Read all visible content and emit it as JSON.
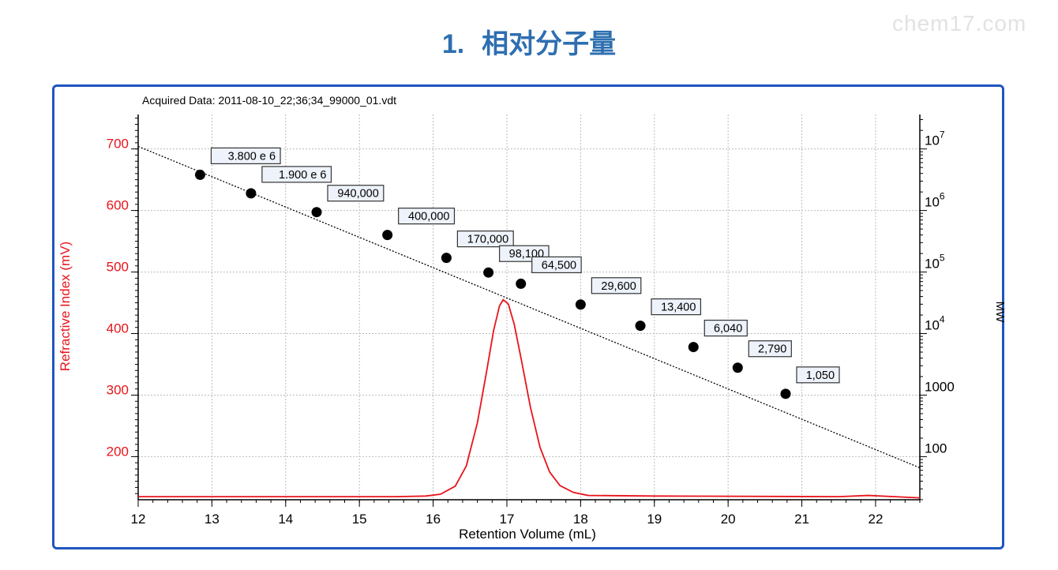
{
  "header": {
    "number": "1.",
    "title": "相对分子量",
    "watermark": "chem17.com"
  },
  "chart_data": {
    "type": "line",
    "title": "Acquired Data: 2011-08-10_22;36;34_99000_01.vdt",
    "xlabel": "Retention Volume (mL)",
    "ylabel": "Refractive Index (mV)",
    "y2label": "MW",
    "xlim": [
      12,
      22.6
    ],
    "ylim": [
      130,
      756
    ],
    "y2_scale": "log",
    "y2lim": [
      13,
      56000000.0
    ],
    "x_ticks": [
      "12",
      "13",
      "14",
      "15",
      "16",
      "17",
      "18",
      "19",
      "20",
      "21",
      "22"
    ],
    "y_ticks": [
      "200",
      "300",
      "400",
      "500",
      "600",
      "700"
    ],
    "y2_ticks": [
      {
        "label": "10",
        "exp": "7",
        "value": 10000000
      },
      {
        "label": "10",
        "exp": "6",
        "value": 1000000
      },
      {
        "label": "10",
        "exp": "5",
        "value": 100000
      },
      {
        "label": "10",
        "exp": "4",
        "value": 10000
      },
      {
        "label": "1000",
        "exp": "",
        "value": 1000
      },
      {
        "label": "100",
        "exp": "",
        "value": 100
      }
    ],
    "grid": true,
    "colors": {
      "ri": "#e8141b",
      "calibration": "#000000",
      "axis_left": "#e8141b",
      "frame": "#1f55c0"
    },
    "calibration_standards": [
      {
        "x": 12.84,
        "mw": 3800000,
        "label": "3.800 e 6"
      },
      {
        "x": 13.53,
        "mw": 1900000,
        "label": "1.900 e 6"
      },
      {
        "x": 14.42,
        "mw": 940000,
        "label": "940,000"
      },
      {
        "x": 15.38,
        "mw": 400000,
        "label": "400,000"
      },
      {
        "x": 16.18,
        "mw": 170000,
        "label": "170,000"
      },
      {
        "x": 16.75,
        "mw": 98100,
        "label": "98,100"
      },
      {
        "x": 17.19,
        "mw": 64500,
        "label": "64,500"
      },
      {
        "x": 18.0,
        "mw": 29600,
        "label": "29,600"
      },
      {
        "x": 18.81,
        "mw": 13400,
        "label": "13,400"
      },
      {
        "x": 19.53,
        "mw": 6040,
        "label": "6,040"
      },
      {
        "x": 20.13,
        "mw": 2790,
        "label": "2,790"
      },
      {
        "x": 20.78,
        "mw": 1050,
        "label": "1,050"
      }
    ],
    "calibration_line": [
      {
        "x": 12,
        "mw": 11000000
      },
      {
        "x": 22.6,
        "mw": 66
      }
    ],
    "ri_series": {
      "name": "Refractive Index",
      "points": [
        [
          12,
          135
        ],
        [
          15.5,
          135
        ],
        [
          15.9,
          136
        ],
        [
          16.1,
          139
        ],
        [
          16.3,
          152
        ],
        [
          16.45,
          185
        ],
        [
          16.6,
          255
        ],
        [
          16.72,
          335
        ],
        [
          16.82,
          405
        ],
        [
          16.9,
          445
        ],
        [
          16.95,
          455
        ],
        [
          17.02,
          448
        ],
        [
          17.1,
          415
        ],
        [
          17.2,
          355
        ],
        [
          17.32,
          280
        ],
        [
          17.45,
          215
        ],
        [
          17.58,
          175
        ],
        [
          17.72,
          153
        ],
        [
          17.9,
          142
        ],
        [
          18.1,
          137
        ],
        [
          19.0,
          136
        ],
        [
          21.5,
          135
        ],
        [
          21.9,
          137
        ],
        [
          22.6,
          133
        ]
      ]
    }
  }
}
